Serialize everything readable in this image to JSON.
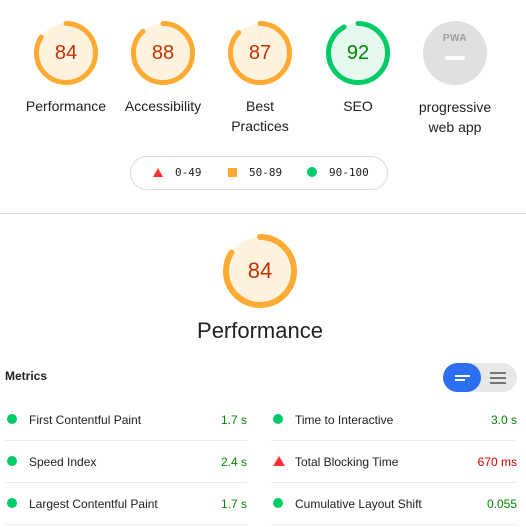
{
  "categories": [
    {
      "score": "84",
      "label": "Performance",
      "fraction": 0.84,
      "color": "#fa3",
      "fill": "#fff3e0"
    },
    {
      "score": "88",
      "label": "Accessibility",
      "fraction": 0.88,
      "color": "#fa3",
      "fill": "#fff3e0"
    },
    {
      "score": "87",
      "label": "Best Practices",
      "fraction": 0.87,
      "color": "#fa3",
      "fill": "#fff3e0"
    },
    {
      "score": "92",
      "label": "SEO",
      "fraction": 0.92,
      "color": "#0c6",
      "fill": "#e6f9ee"
    },
    {
      "badge": "PWA",
      "label": "progressive web app"
    }
  ],
  "legend": [
    {
      "range": "0-49",
      "shape": "triangle",
      "color": "#f33"
    },
    {
      "range": "50-89",
      "shape": "square",
      "color": "#fa3"
    },
    {
      "range": "90-100",
      "shape": "circle",
      "color": "#0c6"
    }
  ],
  "main": {
    "score": "84",
    "fraction": 0.84,
    "title": "Performance"
  },
  "metrics": {
    "title": "Metrics",
    "items": [
      {
        "name": "First Contentful Paint",
        "value": "1.7 s",
        "status": "pass"
      },
      {
        "name": "Time to Interactive",
        "value": "3.0 s",
        "status": "pass"
      },
      {
        "name": "Speed Index",
        "value": "2.4 s",
        "status": "pass"
      },
      {
        "name": "Total Blocking Time",
        "value": "670 ms",
        "status": "fail"
      },
      {
        "name": "Largest Contentful Paint",
        "value": "1.7 s",
        "status": "pass"
      },
      {
        "name": "Cumulative Layout Shift",
        "value": "0.055",
        "status": "pass"
      }
    ]
  }
}
